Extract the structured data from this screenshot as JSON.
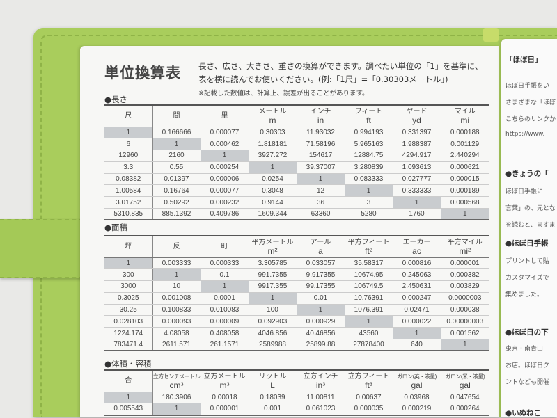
{
  "title": "単位換算表",
  "description_line1": "長さ、広さ、大きさ、重さの換算ができます。調べたい単位の「1」を基準に、",
  "description_line2": "表を横に読んでお使いください。(例:「1尺」=「0.30303メートル」)",
  "note": "※記載した数値は、計算上、誤差が出ることがあります。",
  "tables": [
    {
      "section": "●長さ",
      "headers": [
        [
          "尺",
          ""
        ],
        [
          "間",
          ""
        ],
        [
          "里",
          ""
        ],
        [
          "メートル",
          "m"
        ],
        [
          "インチ",
          "in"
        ],
        [
          "フィート",
          "ft"
        ],
        [
          "ヤード",
          "yd"
        ],
        [
          "マイル",
          "mi"
        ]
      ],
      "rows": [
        [
          "1",
          "0.166666",
          "0.000077",
          "0.30303",
          "11.93032",
          "0.994193",
          "0.331397",
          "0.000188"
        ],
        [
          "6",
          "1",
          "0.000462",
          "1.818181",
          "71.58196",
          "5.965163",
          "1.988387",
          "0.001129"
        ],
        [
          "12960",
          "2160",
          "1",
          "3927.272",
          "154617",
          "12884.75",
          "4294.917",
          "2.440294"
        ],
        [
          "3.3",
          "0.55",
          "0.000254",
          "1",
          "39.37007",
          "3.280839",
          "1.093613",
          "0.000621"
        ],
        [
          "0.08382",
          "0.01397",
          "0.000006",
          "0.0254",
          "1",
          "0.083333",
          "0.027777",
          "0.000015"
        ],
        [
          "1.00584",
          "0.16764",
          "0.000077",
          "0.3048",
          "12",
          "1",
          "0.333333",
          "0.000189"
        ],
        [
          "3.01752",
          "0.50292",
          "0.000232",
          "0.9144",
          "36",
          "3",
          "1",
          "0.000568"
        ],
        [
          "5310.835",
          "885.1392",
          "0.409786",
          "1609.344",
          "63360",
          "5280",
          "1760",
          "1"
        ]
      ]
    },
    {
      "section": "●面積",
      "headers": [
        [
          "坪",
          ""
        ],
        [
          "反",
          ""
        ],
        [
          "町",
          ""
        ],
        [
          "平方メートル",
          "m²"
        ],
        [
          "アール",
          "a"
        ],
        [
          "平方フィート",
          "ft²"
        ],
        [
          "エーカー",
          "ac"
        ],
        [
          "平方マイル",
          "mi²"
        ]
      ],
      "rows": [
        [
          "1",
          "0.003333",
          "0.000333",
          "3.305785",
          "0.033057",
          "35.58317",
          "0.000816",
          "0.000001"
        ],
        [
          "300",
          "1",
          "0.1",
          "991.7355",
          "9.917355",
          "10674.95",
          "0.245063",
          "0.000382"
        ],
        [
          "3000",
          "10",
          "1",
          "9917.355",
          "99.17355",
          "106749.5",
          "2.450631",
          "0.003829"
        ],
        [
          "0.3025",
          "0.001008",
          "0.0001",
          "1",
          "0.01",
          "10.76391",
          "0.000247",
          "0.0000003"
        ],
        [
          "30.25",
          "0.100833",
          "0.010083",
          "100",
          "1",
          "1076.391",
          "0.02471",
          "0.000038"
        ],
        [
          "0.028103",
          "0.000093",
          "0.000009",
          "0.092903",
          "0.000929",
          "1",
          "0.000022",
          "0.00000003"
        ],
        [
          "1224.174",
          "4.08058",
          "0.408058",
          "4046.856",
          "40.46856",
          "43560",
          "1",
          "0.001562"
        ],
        [
          "783471.4",
          "2611.571",
          "261.1571",
          "2589988",
          "25899.88",
          "27878400",
          "640",
          "1"
        ]
      ]
    },
    {
      "section": "●体積・容積",
      "headers": [
        [
          "合",
          ""
        ],
        [
          "立方センチメートル",
          "cm³"
        ],
        [
          "立方メートル",
          "m³"
        ],
        [
          "リットル",
          "L"
        ],
        [
          "立方インチ",
          "in³"
        ],
        [
          "立方フィート",
          "ft³"
        ],
        [
          "ガロン(英・液量)",
          "gal"
        ],
        [
          "ガロン(米・液量)",
          "gal"
        ]
      ],
      "rows": [
        [
          "1",
          "180.3906",
          "0.00018",
          "0.18039",
          "11.00811",
          "0.00637",
          "0.03968",
          "0.047654"
        ],
        [
          "0.005543",
          "1",
          "0.000001",
          "0.001",
          "0.061023",
          "0.000035",
          "0.000219",
          "0.000264"
        ]
      ]
    }
  ],
  "right_page": {
    "heading": "「ほぼ日」",
    "lines": [
      "ほぼ日手帳をい",
      "さまざまな「ほぼ",
      "こちらのリンクか",
      "https://www.",
      "●きょうの「",
      "ほぼ日手帳に",
      "言葉」の、元とな",
      "を読むと、ますま",
      "●ほぼ日手帳",
      "プリントして貼",
      "カスタマイズで",
      "集めました。",
      "●ほぼ日の下",
      "東京・南青山",
      "お店。ほぼ日ク",
      "ントなども開催",
      "●いぬねこ"
    ]
  }
}
